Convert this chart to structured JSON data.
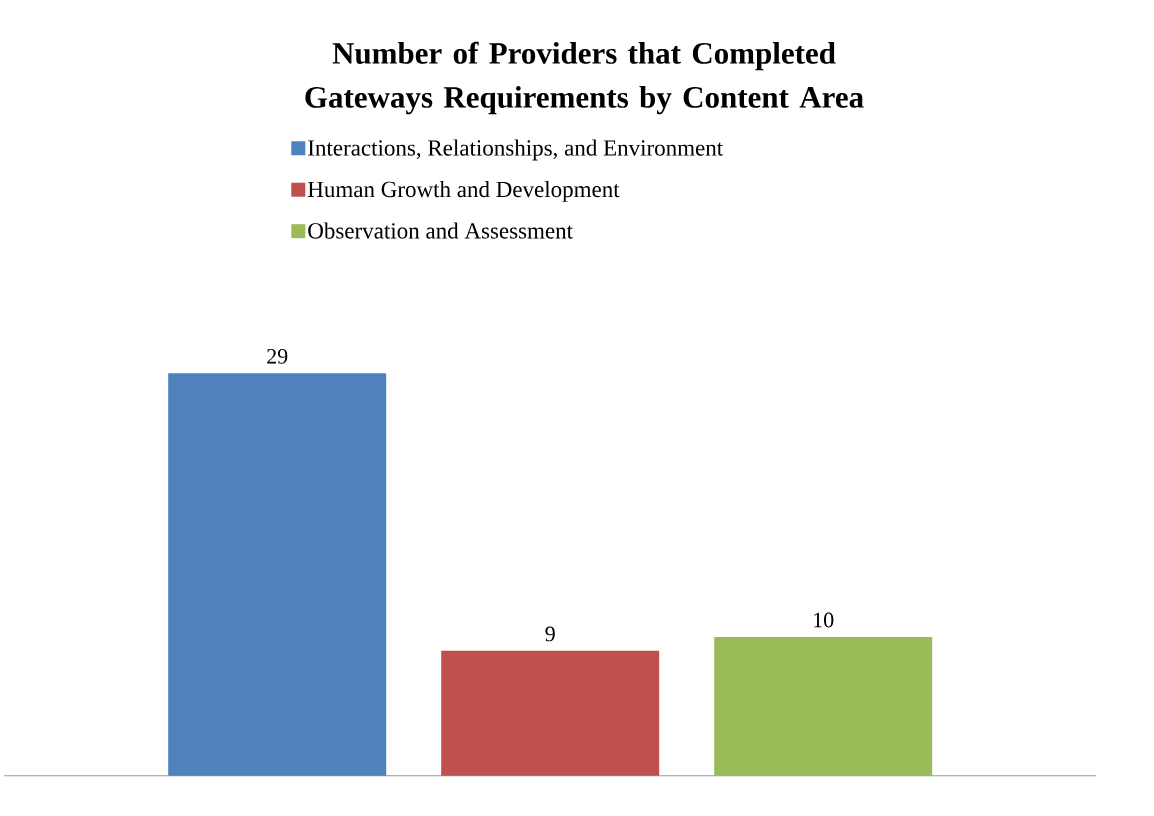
{
  "chart_data": {
    "type": "bar",
    "title": "Number of Providers that Completed Gateways Requirements by Content Area",
    "categories": [
      null
    ],
    "series": [
      {
        "name": "Interactions, Relationships, and Environment",
        "color": "#4f81bd",
        "values": [
          29
        ]
      },
      {
        "name": "Human Growth and Development",
        "color": "#c0504d",
        "values": [
          9
        ]
      },
      {
        "name": "Observation and Assessment",
        "color": "#9bbb59",
        "values": [
          10
        ]
      }
    ],
    "data_labels": true,
    "legend": "top"
  }
}
